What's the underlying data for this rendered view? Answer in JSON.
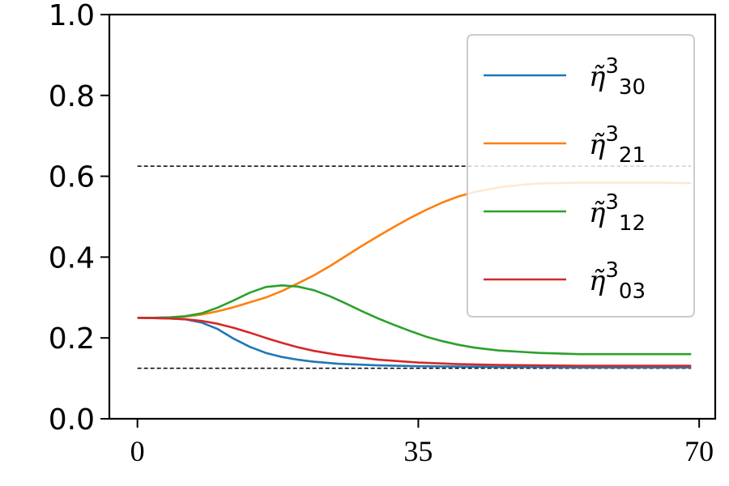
{
  "chart_data": {
    "type": "line",
    "xlim": [
      -3.5,
      72
    ],
    "ylim": [
      0.0,
      1.0
    ],
    "x_ticks": [
      0,
      35,
      70
    ],
    "y_ticks": [
      "0.0",
      "0.2",
      "0.4",
      "0.6",
      "0.8",
      "1.0"
    ],
    "grid": false,
    "legend_position": "upper right",
    "reference_lines": [
      {
        "y": 0.625,
        "x_range": [
          0,
          69
        ],
        "style": "dashed",
        "color": "#000000"
      },
      {
        "y": 0.125,
        "x_range": [
          0,
          69
        ],
        "style": "dashed",
        "color": "#000000"
      }
    ],
    "series": [
      {
        "legend_base": "η̃",
        "legend_sup": "3",
        "legend_sub": "30",
        "color": "#1f77b4",
        "x": [
          0,
          2,
          4,
          6,
          8,
          10,
          12,
          14,
          16,
          18,
          20,
          22,
          25,
          30,
          35,
          40,
          45,
          50,
          55,
          60,
          65,
          69
        ],
        "y": [
          0.25,
          0.249,
          0.248,
          0.246,
          0.238,
          0.222,
          0.198,
          0.178,
          0.163,
          0.153,
          0.146,
          0.141,
          0.136,
          0.132,
          0.13,
          0.129,
          0.128,
          0.128,
          0.127,
          0.127,
          0.127,
          0.127
        ]
      },
      {
        "legend_base": "η̃",
        "legend_sup": "3",
        "legend_sub": "21",
        "color": "#ff7f0e",
        "x": [
          0,
          2,
          4,
          6,
          8,
          10,
          12,
          14,
          16,
          18,
          20,
          22,
          24,
          26,
          28,
          30,
          32,
          34,
          36,
          38,
          40,
          42,
          44,
          46,
          48,
          50,
          52,
          55,
          60,
          65,
          69
        ],
        "y": [
          0.25,
          0.25,
          0.251,
          0.253,
          0.258,
          0.266,
          0.276,
          0.288,
          0.3,
          0.316,
          0.335,
          0.355,
          0.378,
          0.403,
          0.428,
          0.452,
          0.475,
          0.497,
          0.517,
          0.535,
          0.55,
          0.561,
          0.569,
          0.575,
          0.579,
          0.582,
          0.583,
          0.584,
          0.584,
          0.584,
          0.583
        ]
      },
      {
        "legend_base": "η̃",
        "legend_sup": "3",
        "legend_sub": "12",
        "color": "#2ca02c",
        "x": [
          0,
          2,
          4,
          6,
          8,
          10,
          12,
          14,
          16,
          18,
          20,
          22,
          24,
          26,
          28,
          30,
          32,
          34,
          36,
          38,
          40,
          42,
          45,
          50,
          55,
          60,
          65,
          69
        ],
        "y": [
          0.25,
          0.25,
          0.251,
          0.254,
          0.261,
          0.275,
          0.293,
          0.312,
          0.326,
          0.33,
          0.327,
          0.318,
          0.303,
          0.285,
          0.266,
          0.248,
          0.232,
          0.217,
          0.203,
          0.192,
          0.183,
          0.176,
          0.169,
          0.163,
          0.16,
          0.16,
          0.16,
          0.16
        ]
      },
      {
        "legend_base": "η̃",
        "legend_sup": "3",
        "legend_sub": "03",
        "color": "#d62728",
        "x": [
          0,
          2,
          4,
          6,
          8,
          10,
          12,
          14,
          16,
          18,
          20,
          22,
          25,
          30,
          35,
          40,
          45,
          50,
          55,
          60,
          65,
          69
        ],
        "y": [
          0.25,
          0.249,
          0.248,
          0.246,
          0.242,
          0.235,
          0.225,
          0.213,
          0.2,
          0.188,
          0.177,
          0.168,
          0.158,
          0.146,
          0.139,
          0.135,
          0.133,
          0.132,
          0.131,
          0.131,
          0.131,
          0.131
        ]
      }
    ]
  }
}
